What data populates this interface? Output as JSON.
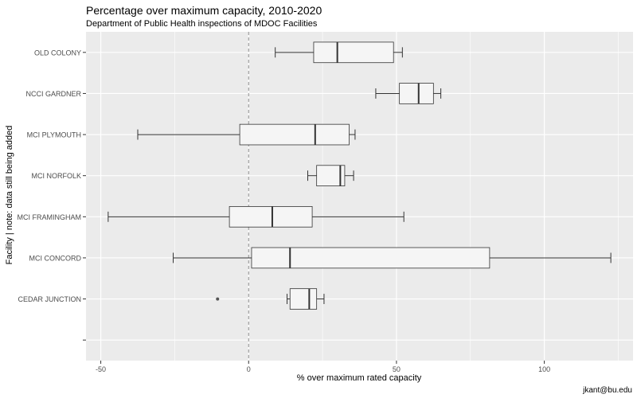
{
  "chart_data": {
    "type": "boxplot",
    "orientation": "horizontal",
    "title": "Percentage over maximum capacity, 2010-2020",
    "subtitle": "Department of Public Health inspections of MDOC Facilities",
    "xlabel": "% over maximum rated capacity",
    "ylabel": "Facility | note: data still being added",
    "caption": "jkant@bu.edu",
    "xlim": [
      -55,
      130
    ],
    "xticks": [
      -50,
      0,
      50,
      100
    ],
    "reference_line": 0,
    "categories": [
      "OLD COLONY",
      "NCCI GARDNER",
      "MCI PLYMOUTH",
      "MCI NORFOLK",
      "MCI FRAMINGHAM",
      "MCI CONCORD",
      "CEDAR JUNCTION",
      ""
    ],
    "boxes": [
      {
        "label": "OLD COLONY",
        "min": 9,
        "q1": 22,
        "median": 30,
        "q3": 49,
        "max": 52,
        "outliers": []
      },
      {
        "label": "NCCI GARDNER",
        "min": 43,
        "q1": 51,
        "median": 57.5,
        "q3": 62.5,
        "max": 65,
        "outliers": []
      },
      {
        "label": "MCI PLYMOUTH",
        "min": -37.5,
        "q1": -3,
        "median": 22.5,
        "q3": 34,
        "max": 36,
        "outliers": []
      },
      {
        "label": "MCI NORFOLK",
        "min": 20,
        "q1": 23,
        "median": 31,
        "q3": 32.5,
        "max": 35.5,
        "outliers": []
      },
      {
        "label": "MCI FRAMINGHAM",
        "min": -47.5,
        "q1": -6.5,
        "median": 8,
        "q3": 21.5,
        "max": 52.5,
        "outliers": []
      },
      {
        "label": "MCI CONCORD",
        "min": -25.5,
        "q1": 1,
        "median": 14,
        "q3": 81.5,
        "max": 122.5,
        "outliers": []
      },
      {
        "label": "CEDAR JUNCTION",
        "min": 13,
        "q1": 14,
        "median": 20.5,
        "q3": 23,
        "max": 25.5,
        "outliers": [
          -10.5
        ]
      },
      {
        "label": "",
        "min": null,
        "q1": null,
        "median": null,
        "q3": null,
        "max": null,
        "outliers": []
      }
    ],
    "colors": {
      "panel": "#EBEBEB",
      "grid": "#FFFFFF",
      "box_fill": "#F5F5F5",
      "box_line": "#333333",
      "ref_line": "#8c8c8c",
      "outlier": "#555555"
    }
  }
}
